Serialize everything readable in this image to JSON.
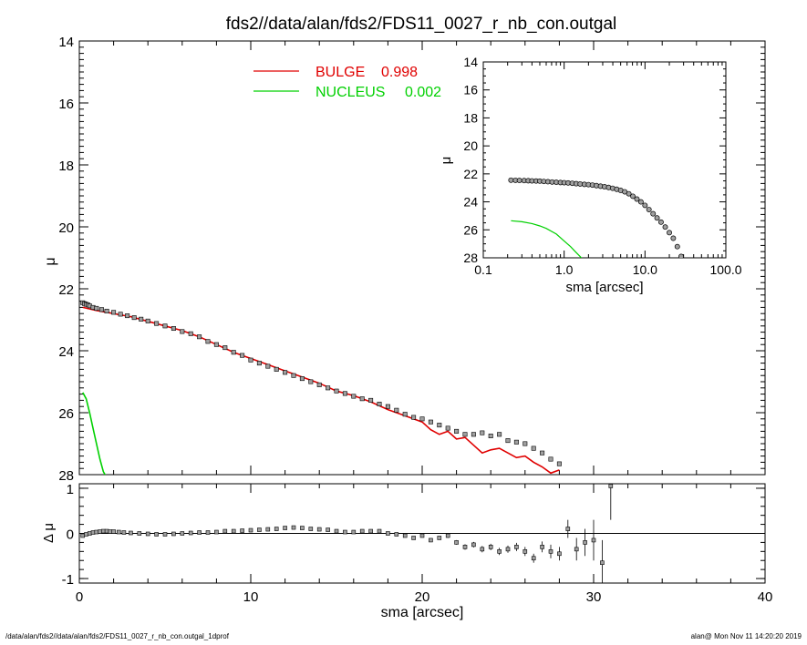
{
  "title": "fds2//data/alan/fds2/FDS11_0027_r_nb_con.outgal",
  "footer": {
    "left": "/data/alan/fds2//data/alan/fds2/FDS11_0027_r_nb_con.outgal_1dprof",
    "right": "alan@  Mon Nov 11 14:20:20 2019"
  },
  "colors": {
    "bulge": "#e00000",
    "nucleus": "#00d000",
    "data": "#000000",
    "marker_fill": "#a0a0a0"
  },
  "chart_data": [
    {
      "id": "main",
      "type": "line",
      "ylabel": "μ",
      "xlim": [
        0,
        40
      ],
      "ylim": [
        28,
        14
      ],
      "y_inverted": true,
      "yticks": [
        14,
        16,
        18,
        20,
        22,
        24,
        26,
        28
      ],
      "ytick_labels": [
        "14",
        "16",
        "18",
        "20",
        "22",
        "24",
        "26",
        "28"
      ],
      "legend_placement": "top-center",
      "legend": [
        {
          "name": "BULGE",
          "value": "0.998",
          "color": "#e00000"
        },
        {
          "name": "NUCLEUS",
          "value": "0.002",
          "color": "#00d000"
        }
      ],
      "series": [
        {
          "name": "data",
          "style": "markers",
          "x": [
            0.2,
            0.3,
            0.4,
            0.5,
            0.6,
            0.8,
            1.0,
            1.3,
            1.6,
            2.0,
            2.4,
            2.8,
            3.2,
            3.6,
            4.0,
            4.5,
            5.0,
            5.5,
            6.0,
            6.5,
            7.0,
            7.5,
            8.0,
            8.5,
            9.0,
            9.5,
            10.0,
            10.5,
            11.0,
            11.5,
            12.0,
            12.5,
            13.0,
            13.5,
            14.0,
            14.5,
            15.0,
            15.5,
            16.0,
            16.5,
            17.0,
            17.5,
            18.0,
            18.5,
            19.0,
            19.5,
            20.0,
            20.5,
            21.0,
            21.5,
            22.0,
            22.5,
            23.0,
            23.5,
            24.0,
            24.5,
            25.0,
            25.5,
            26.0,
            26.5,
            27.0,
            27.5,
            28.0
          ],
          "y": [
            22.45,
            22.48,
            22.5,
            22.52,
            22.55,
            22.6,
            22.63,
            22.67,
            22.72,
            22.76,
            22.82,
            22.87,
            22.93,
            22.98,
            23.04,
            23.12,
            23.2,
            23.28,
            23.38,
            23.45,
            23.55,
            23.7,
            23.8,
            23.9,
            24.05,
            24.15,
            24.3,
            24.4,
            24.5,
            24.6,
            24.7,
            24.8,
            24.9,
            25.0,
            25.1,
            25.2,
            25.3,
            25.38,
            25.47,
            25.55,
            25.6,
            25.72,
            25.8,
            25.92,
            26.05,
            26.15,
            26.2,
            26.3,
            26.4,
            26.5,
            26.6,
            26.7,
            26.7,
            26.65,
            26.75,
            26.7,
            26.9,
            26.95,
            27.0,
            27.15,
            27.3,
            27.5,
            27.65
          ]
        },
        {
          "name": "BULGE",
          "style": "line",
          "color": "#e00000",
          "x": [
            0.2,
            1.0,
            2.0,
            3.0,
            4.0,
            5.0,
            6.0,
            7.0,
            8.0,
            9.0,
            10.0,
            11.0,
            12.0,
            13.0,
            14.0,
            15.0,
            16.0,
            17.0,
            18.0,
            19.0,
            20.0,
            20.5,
            21.0,
            21.5,
            22.0,
            22.5,
            23.0,
            23.5,
            24.0,
            24.5,
            25.0,
            25.5,
            26.0,
            26.5,
            27.0,
            27.5,
            28.0
          ],
          "y": [
            22.6,
            22.7,
            22.8,
            22.9,
            23.05,
            23.2,
            23.35,
            23.55,
            23.8,
            24.05,
            24.25,
            24.45,
            24.65,
            24.85,
            25.05,
            25.3,
            25.45,
            25.65,
            25.9,
            26.1,
            26.3,
            26.55,
            26.7,
            26.6,
            26.85,
            26.8,
            27.05,
            27.3,
            27.2,
            27.15,
            27.3,
            27.45,
            27.4,
            27.6,
            27.75,
            27.95,
            27.85
          ]
        },
        {
          "name": "NUCLEUS",
          "style": "line",
          "color": "#00d000",
          "x": [
            0.2,
            0.4,
            0.6,
            0.8,
            1.0,
            1.2,
            1.4,
            1.6
          ],
          "y": [
            25.35,
            25.55,
            26.0,
            26.5,
            27.0,
            27.5,
            27.9,
            28.1
          ]
        }
      ]
    },
    {
      "id": "inset",
      "type": "line",
      "xlabel": "sma [arcsec]",
      "ylabel": "μ",
      "x_log": true,
      "xlim": [
        0.1,
        100.0
      ],
      "xticks": [
        0.1,
        1.0,
        10.0,
        100.0
      ],
      "xtick_labels": [
        "0.1",
        "1.0",
        "10.0",
        "100.0"
      ],
      "ylim": [
        28,
        14
      ],
      "y_inverted": true,
      "yticks": [
        14,
        16,
        18,
        20,
        22,
        24,
        26,
        28
      ],
      "ytick_labels": [
        "14",
        "16",
        "18",
        "20",
        "22",
        "24",
        "26",
        "28"
      ],
      "series": [
        {
          "name": "data",
          "style": "markers",
          "x": [
            0.22,
            0.25,
            0.28,
            0.32,
            0.36,
            0.4,
            0.45,
            0.5,
            0.56,
            0.63,
            0.71,
            0.8,
            0.9,
            1.0,
            1.12,
            1.26,
            1.41,
            1.58,
            1.78,
            2.0,
            2.24,
            2.51,
            2.82,
            3.16,
            3.55,
            3.98,
            4.47,
            5.01,
            5.62,
            6.31,
            7.08,
            7.94,
            8.91,
            10.0,
            11.2,
            12.6,
            14.1,
            15.8,
            17.8,
            20.0,
            22.4,
            25.1,
            28.0
          ],
          "y": [
            22.45,
            22.46,
            22.47,
            22.48,
            22.49,
            22.5,
            22.51,
            22.52,
            22.54,
            22.56,
            22.58,
            22.6,
            22.62,
            22.63,
            22.65,
            22.67,
            22.7,
            22.72,
            22.75,
            22.77,
            22.8,
            22.84,
            22.88,
            22.92,
            22.97,
            23.03,
            23.1,
            23.18,
            23.28,
            23.42,
            23.6,
            23.8,
            24.0,
            24.25,
            24.55,
            24.85,
            25.15,
            25.45,
            25.8,
            26.2,
            26.6,
            27.2,
            27.9
          ]
        },
        {
          "name": "BULGE",
          "style": "line",
          "color": "#e00000",
          "x": [
            0.22,
            1.0,
            3.0,
            6.0,
            10.0,
            15.0,
            20.0,
            28.0
          ],
          "y": [
            22.6,
            22.7,
            22.9,
            23.35,
            24.25,
            25.3,
            26.3,
            27.85
          ]
        },
        {
          "name": "NUCLEUS",
          "style": "line",
          "color": "#00d000",
          "x": [
            0.22,
            0.3,
            0.4,
            0.5,
            0.6,
            0.8,
            1.0,
            1.2,
            1.4,
            1.6,
            1.8
          ],
          "y": [
            25.35,
            25.42,
            25.55,
            25.72,
            25.9,
            26.3,
            26.8,
            27.2,
            27.6,
            27.95,
            28.3
          ]
        }
      ]
    },
    {
      "id": "residual",
      "type": "scatter",
      "xlabel": "sma [arcsec]",
      "ylabel": "Δ μ",
      "xlim": [
        0,
        40
      ],
      "xticks": [
        0,
        10,
        20,
        30,
        40
      ],
      "xtick_labels": [
        "0",
        "10",
        "20",
        "30",
        "40"
      ],
      "ylim": [
        -1.1,
        1.1
      ],
      "yticks": [
        -1,
        0,
        1
      ],
      "ytick_labels": [
        "-1",
        "0",
        "1"
      ],
      "zero_line": true,
      "series": [
        {
          "name": "residual",
          "x": [
            0.2,
            0.4,
            0.6,
            0.8,
            1.0,
            1.2,
            1.4,
            1.6,
            1.8,
            2.0,
            2.3,
            2.6,
            3.0,
            3.5,
            4.0,
            4.5,
            5.0,
            5.5,
            6.0,
            6.5,
            7.0,
            7.5,
            8.0,
            8.5,
            9.0,
            9.5,
            10.0,
            10.5,
            11.0,
            11.5,
            12.0,
            12.5,
            13.0,
            13.5,
            14.0,
            14.5,
            15.0,
            15.5,
            16.0,
            16.5,
            17.0,
            17.5,
            18.0,
            18.5,
            19.0,
            19.5,
            20.0,
            20.5,
            21.0,
            21.5,
            22.0,
            22.5,
            23.0,
            23.5,
            24.0,
            24.5,
            25.0,
            25.5,
            26.0,
            26.5,
            27.0,
            27.5,
            28.0,
            28.5,
            29.0,
            29.5,
            30.0,
            30.5,
            31.0
          ],
          "y": [
            -0.05,
            -0.02,
            0.0,
            0.02,
            0.03,
            0.04,
            0.05,
            0.05,
            0.04,
            0.04,
            0.03,
            0.02,
            0.01,
            0.0,
            -0.01,
            -0.02,
            -0.02,
            -0.01,
            0.0,
            0.01,
            0.02,
            0.02,
            0.03,
            0.05,
            0.05,
            0.06,
            0.07,
            0.08,
            0.09,
            0.1,
            0.12,
            0.13,
            0.12,
            0.1,
            0.09,
            0.08,
            0.05,
            0.03,
            0.03,
            0.05,
            0.05,
            0.05,
            0.0,
            -0.02,
            -0.05,
            -0.1,
            -0.05,
            -0.15,
            -0.1,
            -0.05,
            -0.2,
            -0.3,
            -0.25,
            -0.35,
            -0.3,
            -0.4,
            -0.35,
            -0.3,
            -0.4,
            -0.55,
            -0.3,
            -0.4,
            -0.45,
            0.1,
            -0.35,
            -0.2,
            -0.15,
            -0.65,
            1.05
          ],
          "err": [
            0.01,
            0.01,
            0.01,
            0.01,
            0.01,
            0.01,
            0.01,
            0.01,
            0.01,
            0.01,
            0.01,
            0.01,
            0.01,
            0.01,
            0.01,
            0.01,
            0.01,
            0.01,
            0.01,
            0.01,
            0.01,
            0.01,
            0.01,
            0.01,
            0.01,
            0.01,
            0.01,
            0.01,
            0.01,
            0.01,
            0.01,
            0.01,
            0.01,
            0.01,
            0.02,
            0.02,
            0.02,
            0.02,
            0.02,
            0.02,
            0.02,
            0.02,
            0.03,
            0.03,
            0.03,
            0.03,
            0.04,
            0.04,
            0.04,
            0.05,
            0.05,
            0.06,
            0.06,
            0.07,
            0.07,
            0.08,
            0.08,
            0.09,
            0.1,
            0.1,
            0.12,
            0.15,
            0.15,
            0.2,
            0.25,
            0.3,
            0.45,
            0.5,
            0.75
          ]
        }
      ]
    }
  ]
}
